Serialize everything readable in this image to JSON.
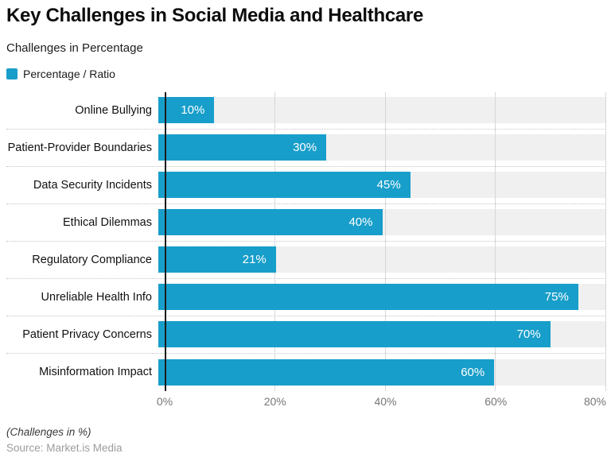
{
  "title": "Key Challenges in Social Media and Healthcare",
  "subtitle": "Challenges in Percentage",
  "legend": {
    "label": "Percentage / Ratio",
    "swatch_color": "#189eca"
  },
  "chart_data": {
    "type": "bar",
    "orientation": "horizontal",
    "title": "Key Challenges in Social Media and Healthcare",
    "subtitle": "Challenges in Percentage",
    "series_name": "Percentage / Ratio",
    "categories": [
      "Online Bullying",
      "Patient-Provider Boundaries",
      "Data Security Incidents",
      "Ethical Dilemmas",
      "Regulatory Compliance",
      "Unreliable Health Info",
      "Patient Privacy Concerns",
      "Misinformation Impact"
    ],
    "values": [
      10,
      30,
      45,
      40,
      21,
      75,
      70,
      60
    ],
    "value_labels": [
      "10%",
      "30%",
      "45%",
      "40%",
      "21%",
      "75%",
      "70%",
      "60%"
    ],
    "xlim": [
      0,
      80
    ],
    "ticks": [
      {
        "value": 0,
        "label": "0%"
      },
      {
        "value": 20,
        "label": "20%"
      },
      {
        "value": 40,
        "label": "40%"
      },
      {
        "value": 60,
        "label": "60%"
      },
      {
        "value": 80,
        "label": "80%"
      }
    ],
    "bar_color": "#189eca",
    "track_color": "#f0f0f0",
    "gridline_color": "#d5d7d9",
    "axis_line_color": "#1b1b1b",
    "grid": true,
    "legend_position": "top-left",
    "value_label_position": "inside-end",
    "value_label_color": "#ffffff"
  },
  "footer": {
    "note": "(Challenges in %)",
    "source": "Source: Market.is Media"
  }
}
